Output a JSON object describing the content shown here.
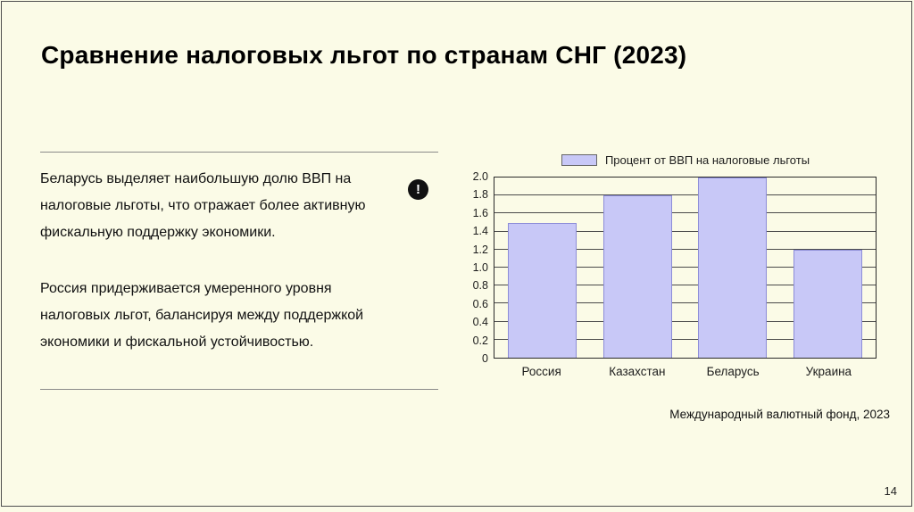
{
  "slide": {
    "title": "Сравнение налоговых льгот по странам СНГ (2023)",
    "source": "Международный валютный фонд, 2023",
    "page_number": "14"
  },
  "text_block": {
    "paragraph1": "Беларусь выделяет наибольшую долю ВВП на налоговые льготы, что отражает более активную фискальную поддержку экономики.",
    "paragraph2": "Россия придерживается умеренного уровня налоговых льгот, балансируя между поддержкой экономики и фискальной устойчивостью.",
    "note_icon_glyph": "!"
  },
  "chart_data": {
    "type": "bar",
    "title": "",
    "legend": [
      {
        "label": "Процент от ВВП на налоговые льготы",
        "color": "#c8c8f7"
      }
    ],
    "legend_position": "top",
    "categories": [
      "Россия",
      "Казахстан",
      "Беларусь",
      "Украина"
    ],
    "values": [
      1.5,
      1.8,
      2.0,
      1.2
    ],
    "ylim": [
      0,
      2.0
    ],
    "yticks": [
      {
        "label": "2.0",
        "value": 2.0
      },
      {
        "label": "1.8",
        "value": 1.8
      },
      {
        "label": "1.6",
        "value": 1.6
      },
      {
        "label": "1.4",
        "value": 1.4
      },
      {
        "label": "1.2",
        "value": 1.2
      },
      {
        "label": "1.0",
        "value": 1.0
      },
      {
        "label": "0.8",
        "value": 0.8
      },
      {
        "label": "0.6",
        "value": 0.6
      },
      {
        "label": "0.4",
        "value": 0.4
      },
      {
        "label": "0.2",
        "value": 0.2
      },
      {
        "label": "0",
        "value": 0
      }
    ],
    "grid": true,
    "bar_color": "#c8c8f7"
  },
  "colors": {
    "background": "#fbfbe7",
    "bar_fill": "#c8c8f7",
    "bar_border": "#8d8dd8",
    "note_icon_bg": "#111111"
  }
}
